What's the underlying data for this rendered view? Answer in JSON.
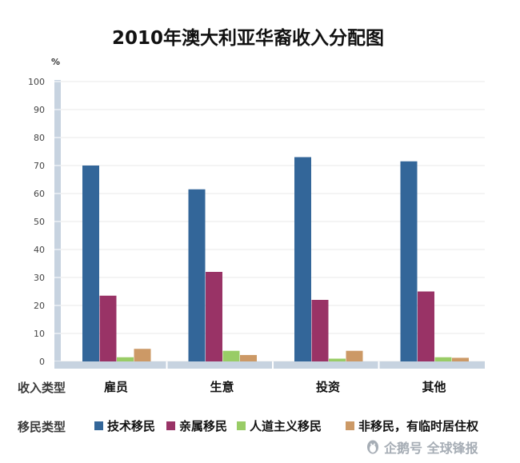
{
  "chart_data": {
    "type": "bar",
    "title": "2010年澳大利亚华裔收入分配图",
    "ylabel": "%",
    "ylim": [
      0,
      100
    ],
    "yticks": [
      0,
      10,
      20,
      30,
      40,
      50,
      60,
      70,
      80,
      90,
      100
    ],
    "grid": true,
    "xlabel": "收入类型",
    "categories": [
      "雇员",
      "生意",
      "投资",
      "其他"
    ],
    "legend_title": "移民类型",
    "legend_position": "bottom",
    "series": [
      {
        "name": "技术移民",
        "color": "#336699",
        "values": [
          70,
          61.5,
          73,
          71.5
        ]
      },
      {
        "name": "亲属移民",
        "color": "#993366",
        "values": [
          23.5,
          32,
          22,
          25
        ]
      },
      {
        "name": "人道主义移民",
        "color": "#99cc66",
        "values": [
          1.5,
          3.8,
          1,
          1.5
        ]
      },
      {
        "name": "非移民，有临时居住权",
        "color": "#cc9966",
        "values": [
          4.5,
          2.3,
          3.8,
          1.3
        ]
      }
    ]
  },
  "watermark": {
    "text": "企鹅号 全球锋报",
    "icon": "penguin-icon"
  }
}
